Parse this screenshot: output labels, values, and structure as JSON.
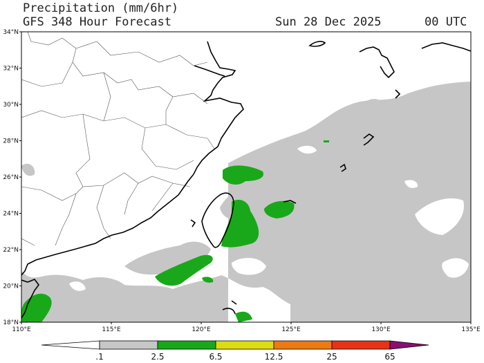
{
  "header": {
    "title": "Precipitation (mm/6hr)",
    "subtitle": "GFS 348 Hour Forecast",
    "valid_date": "Sun 28 Dec 2025",
    "valid_time": "00 UTC"
  },
  "map": {
    "lon_labels": [
      "110°E",
      "115°E",
      "120°E",
      "125°E",
      "130°E",
      "135°E"
    ],
    "lat_labels": [
      "34°N",
      "32°N",
      "30°N",
      "28°N",
      "26°N",
      "24°N",
      "22°N",
      "20°N",
      "18°N"
    ]
  },
  "colorbar": {
    "labels": [
      ".1",
      "2.5",
      "6.5",
      "12.5",
      "25",
      "65"
    ],
    "colors": [
      "#ffffff",
      "#c6c6c6",
      "#19a819",
      "#dcdc12",
      "#ee7a12",
      "#e83216",
      "#8b0e72"
    ]
  }
}
